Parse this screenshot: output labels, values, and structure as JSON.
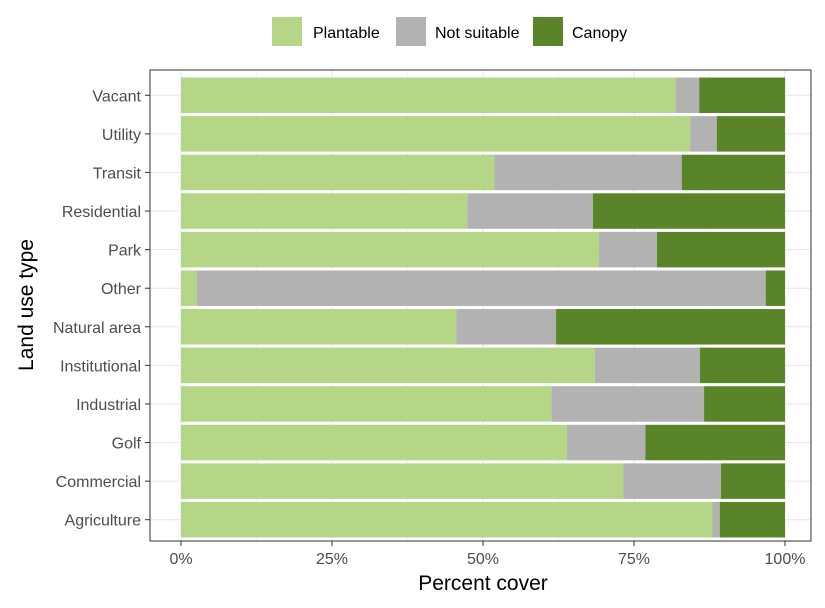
{
  "chart_data": {
    "type": "bar",
    "orientation": "horizontal",
    "stacked": true,
    "categories": [
      "Agriculture",
      "Commercial",
      "Golf",
      "Industrial",
      "Institutional",
      "Natural area",
      "Other",
      "Park",
      "Residential",
      "Transit",
      "Utility",
      "Vacant"
    ],
    "series": [
      {
        "name": "Plantable",
        "color": "#b5d686",
        "values": [
          88.0,
          73.2,
          63.9,
          61.3,
          68.5,
          45.6,
          2.6,
          69.2,
          47.4,
          51.9,
          84.3,
          81.9
        ]
      },
      {
        "name": "Not suitable",
        "color": "#b2b2b2",
        "values": [
          1.2,
          16.2,
          13.0,
          25.3,
          17.4,
          16.5,
          94.2,
          9.6,
          20.8,
          31.0,
          4.4,
          3.9
        ]
      },
      {
        "name": "Canopy",
        "color": "#5a8428",
        "values": [
          10.8,
          10.6,
          23.1,
          13.4,
          14.1,
          37.9,
          3.2,
          21.2,
          31.8,
          17.1,
          11.3,
          14.2
        ]
      }
    ],
    "xlabel": "Percent cover",
    "ylabel": "Land use type",
    "xlim": [
      0,
      100
    ],
    "xticks": [
      0,
      25,
      50,
      75,
      100
    ],
    "xtick_labels": [
      "0%",
      "25%",
      "50%",
      "75%",
      "100%"
    ],
    "legend_position": "top",
    "grid": true
  }
}
